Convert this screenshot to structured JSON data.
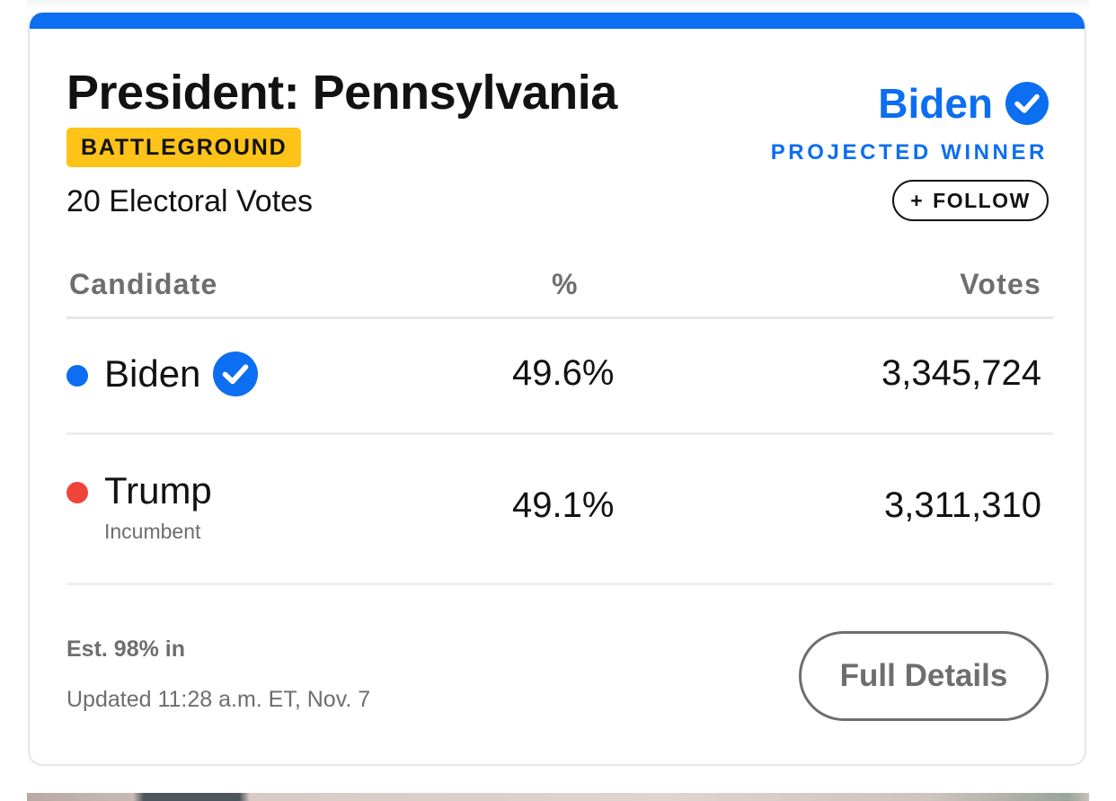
{
  "race": {
    "title": "President: Pennsylvania",
    "badge": "BATTLEGROUND",
    "electoral_votes": "20 Electoral Votes"
  },
  "winner": {
    "name": "Biden",
    "status": "PROJECTED WINNER",
    "check_icon": "check-circle-icon",
    "color": "#0c6ef0"
  },
  "follow": {
    "plus": "+",
    "label": "FOLLOW"
  },
  "table": {
    "headers": {
      "candidate": "Candidate",
      "percent": "%",
      "votes": "Votes"
    },
    "rows": [
      {
        "name": "Biden",
        "subtitle": "",
        "percent": "49.6%",
        "votes": "3,345,724",
        "color": "#0c6ef0",
        "winner": true
      },
      {
        "name": "Trump",
        "subtitle": "Incumbent",
        "percent": "49.1%",
        "votes": "3,311,310",
        "color": "#f0443b",
        "winner": false
      }
    ]
  },
  "footer": {
    "estimate": "Est. 98% in",
    "updated": "Updated 11:28 a.m. ET, Nov. 7",
    "details_label": "Full Details"
  },
  "colors": {
    "accent": "#0c6ef0",
    "badge": "#fdc318",
    "republican": "#f0443b",
    "muted_text": "#6e6e6e"
  }
}
